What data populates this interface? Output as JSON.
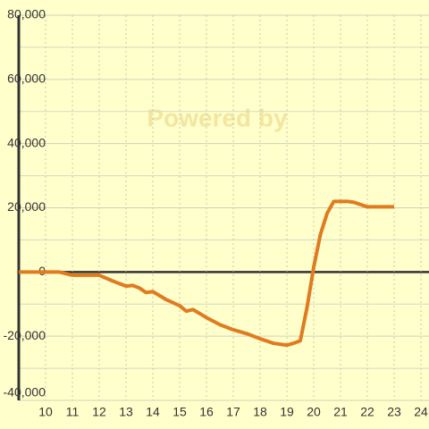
{
  "chart_data": {
    "type": "line",
    "watermark": "Powered by",
    "x": [
      9,
      10.5,
      11,
      11.5,
      12,
      12.5,
      13,
      13.25,
      13.5,
      13.75,
      14,
      14.5,
      15,
      15.25,
      15.5,
      16,
      16.5,
      17,
      17.5,
      18,
      18.5,
      19,
      19.25,
      19.5,
      19.75,
      20,
      20.25,
      20.5,
      20.75,
      21.25,
      21.5,
      22,
      23
    ],
    "series": [
      {
        "color": "#e07b20",
        "values": [
          0,
          0,
          -1000,
          -1000,
          -1000,
          -2800,
          -4400,
          -4200,
          -5000,
          -6400,
          -6100,
          -8600,
          -10500,
          -12200,
          -11700,
          -14200,
          -16400,
          -18000,
          -19200,
          -20800,
          -22200,
          -22800,
          -22200,
          -21400,
          -11100,
          1500,
          11700,
          18300,
          22000,
          22000,
          21700,
          20300,
          20300
        ]
      }
    ],
    "xlim": [
      9,
      24.3
    ],
    "xticks": [
      10,
      11,
      12,
      13,
      14,
      15,
      16,
      17,
      18,
      19,
      20,
      21,
      22,
      23,
      24
    ],
    "ylim": [
      -40000,
      80000
    ],
    "yticks": [
      {
        "value": -40000,
        "label": "-40,000"
      },
      {
        "value": -20000,
        "label": "-20,000"
      },
      0,
      {
        "value": 20000,
        "label": "20,000"
      },
      {
        "value": 40000,
        "label": "40,000"
      },
      {
        "value": 60000,
        "label": "60,000"
      },
      {
        "value": 80000,
        "label": "80,000"
      }
    ],
    "minor_yticks": [
      -30000,
      -10000,
      10000,
      30000,
      50000,
      70000
    ],
    "grid": true
  }
}
